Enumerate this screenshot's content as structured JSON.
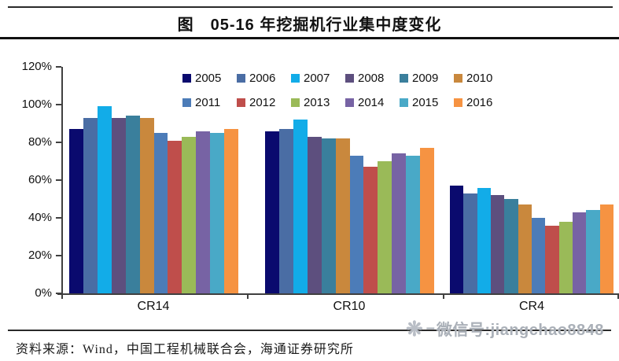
{
  "header": {
    "title": "图　05-16 年挖掘机行业集中度变化"
  },
  "chart_data": {
    "type": "bar",
    "title": "05-16 年挖掘机行业集中度变化",
    "categories": [
      "CR14",
      "CR10",
      "CR4"
    ],
    "series": [
      {
        "name": "2005",
        "color": "#0A0A6E",
        "values": [
          87,
          86,
          57
        ]
      },
      {
        "name": "2006",
        "color": "#4A6DA4",
        "values": [
          93,
          87,
          53
        ]
      },
      {
        "name": "2007",
        "color": "#12ACE8",
        "values": [
          99,
          92,
          56
        ]
      },
      {
        "name": "2008",
        "color": "#5D4F7E",
        "values": [
          93,
          83,
          52
        ]
      },
      {
        "name": "2009",
        "color": "#3A7F9C",
        "values": [
          94,
          82,
          50
        ]
      },
      {
        "name": "2010",
        "color": "#C9883D",
        "values": [
          93,
          82,
          47
        ]
      },
      {
        "name": "2011",
        "color": "#4C7CB8",
        "values": [
          85,
          73,
          40
        ]
      },
      {
        "name": "2012",
        "color": "#BF4E4B",
        "values": [
          81,
          67,
          36
        ]
      },
      {
        "name": "2013",
        "color": "#9ABA58",
        "values": [
          83,
          70,
          38
        ]
      },
      {
        "name": "2014",
        "color": "#7763A4",
        "values": [
          86,
          74,
          43
        ]
      },
      {
        "name": "2015",
        "color": "#49A9C7",
        "values": [
          85,
          73,
          44
        ]
      },
      {
        "name": "2016",
        "color": "#F69342",
        "values": [
          87,
          77,
          47
        ]
      }
    ],
    "y_ticks": [
      "120%",
      "100%",
      "80%",
      "60%",
      "40%",
      "20%",
      "0%"
    ],
    "ylim": [
      0,
      120
    ],
    "grid": false,
    "legend_position": "top-center-two-rows",
    "axis_color": "#404040"
  },
  "footer": {
    "source_label": "资料来源：Wind，中国工程机械联合会，海通证券研究所"
  },
  "watermark": {
    "icon": "starburst-icon",
    "dash": "–",
    "text": "微信号:jiangchao8848"
  }
}
